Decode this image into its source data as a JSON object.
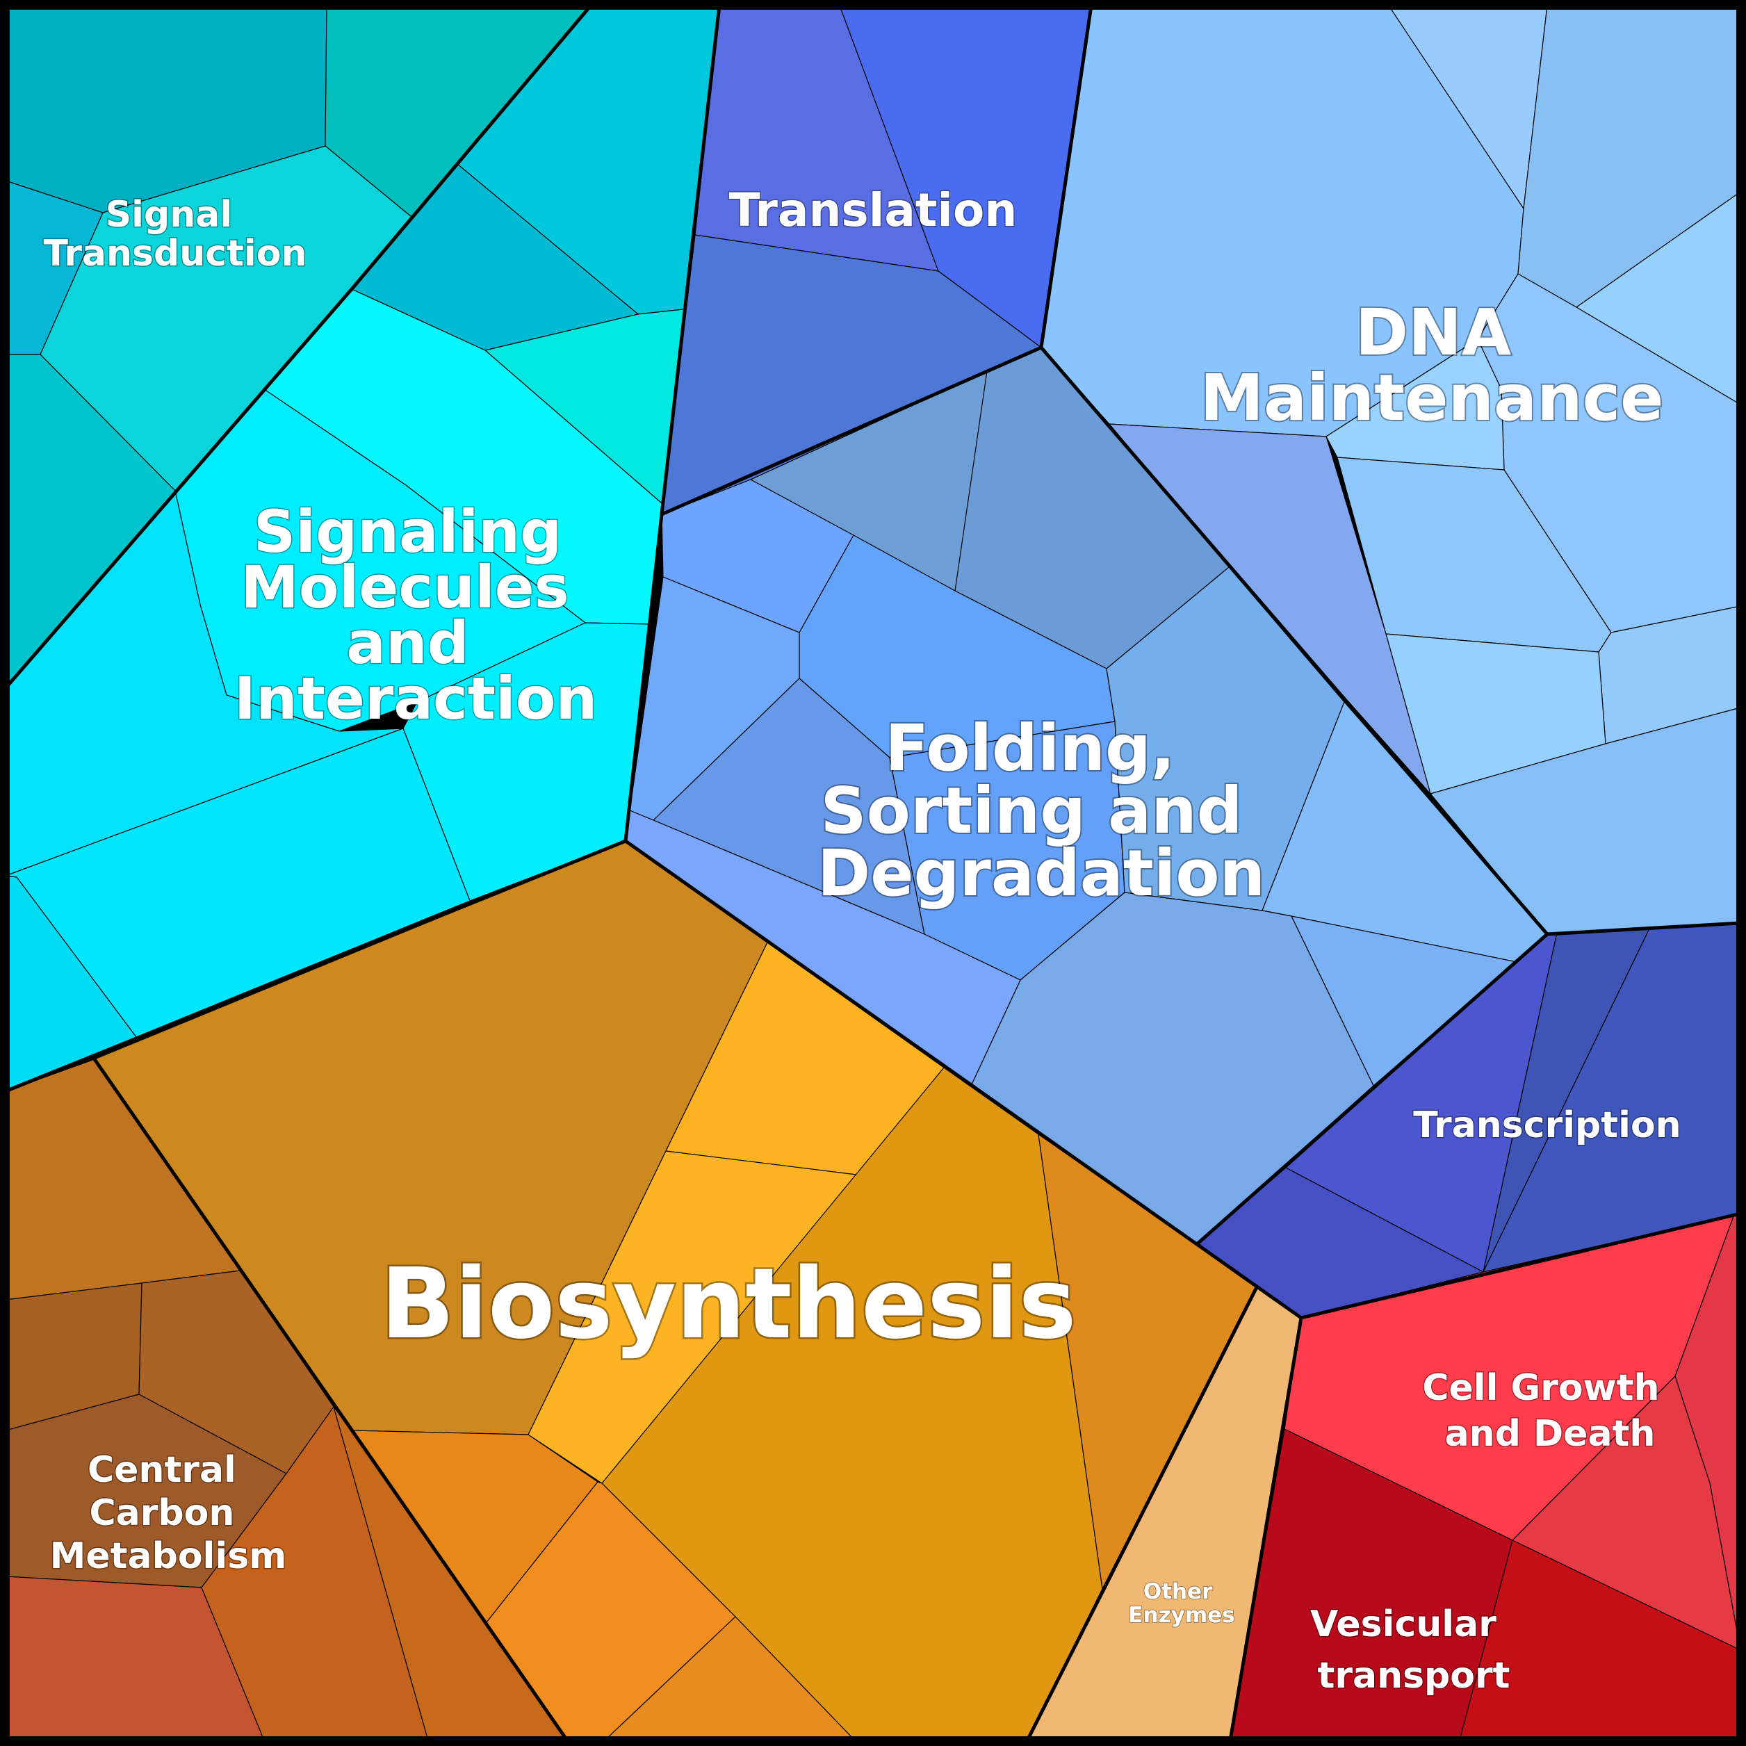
{
  "diagram": {
    "categories": [
      {
        "id": "signal-transduction",
        "label_lines": [
          "Signal",
          "Transduction"
        ]
      },
      {
        "id": "signaling-molecules",
        "label_lines": [
          "Signaling",
          "Molecules",
          "and",
          "Interaction"
        ]
      },
      {
        "id": "translation",
        "label_lines": [
          "Translation"
        ]
      },
      {
        "id": "dna-maintenance",
        "label_lines": [
          "DNA",
          "Maintenance"
        ]
      },
      {
        "id": "folding",
        "label_lines": [
          "Folding,",
          "Sorting and",
          "Degradation"
        ]
      },
      {
        "id": "transcription",
        "label_lines": [
          "Transcription"
        ]
      },
      {
        "id": "biosynthesis",
        "label_lines": [
          "Biosynthesis"
        ]
      },
      {
        "id": "central-carbon",
        "label_lines": [
          "Central",
          "Carbon",
          "Metabolism"
        ]
      },
      {
        "id": "other-enzymes",
        "label_lines": [
          "Other",
          "Enzymes"
        ]
      },
      {
        "id": "cell-growth",
        "label_lines": [
          "Cell Growth",
          "and Death"
        ]
      },
      {
        "id": "vesicular-transport",
        "label_lines": [
          "Vesicular",
          "transport"
        ]
      }
    ]
  },
  "colors": {
    "signal_transduction": "#00b3c4",
    "signaling_molecules": "#00f0ff",
    "translation": "#4f73d8",
    "dna_maintenance": "#8cc4ff",
    "folding": "#6fa8f0",
    "transcription": "#4455c4",
    "biosynthesis": "#d4901c",
    "central_carbon": "#b0621f",
    "other_enzymes": "#f0b872",
    "cell_growth": "#ff3d4d",
    "vesicular_transport": "#c0101e"
  }
}
